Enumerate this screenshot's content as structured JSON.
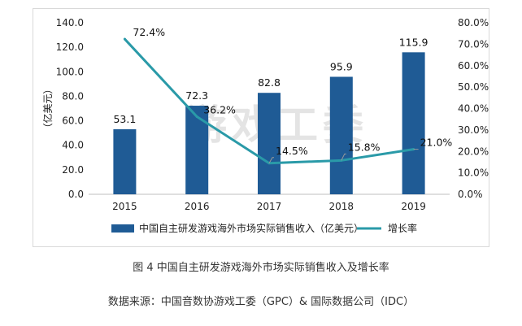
{
  "chart_data": {
    "type": "bar",
    "categories": [
      "2015",
      "2016",
      "2017",
      "2018",
      "2019"
    ],
    "series": [
      {
        "name": "中国自主研发游戏海外市场实际销售收入（亿美元）",
        "type": "bar",
        "axis": "left",
        "values": [
          53.1,
          72.3,
          82.8,
          95.9,
          115.9
        ],
        "labels": [
          "53.1",
          "72.3",
          "82.8",
          "95.9",
          "115.9"
        ],
        "color": "#1f5b95"
      },
      {
        "name": "增长率",
        "type": "line",
        "axis": "right",
        "values": [
          72.4,
          36.2,
          14.5,
          15.8,
          21.0
        ],
        "labels": [
          "72.4%",
          "36.2%",
          "14.5%",
          "15.8%",
          "21.0%"
        ],
        "color": "#2a9aa8"
      }
    ],
    "ylabel": "（亿美元）",
    "ylim": [
      0,
      140
    ],
    "yticks": [
      "0.0",
      "20.0",
      "40.0",
      "60.0",
      "80.0",
      "100.0",
      "120.0",
      "140.0"
    ],
    "y2lim": [
      0,
      80
    ],
    "y2ticks": [
      "0.0%",
      "10.0%",
      "20.0%",
      "30.0%",
      "40.0%",
      "50.0%",
      "60.0%",
      "70.0%",
      "80.0%"
    ],
    "legend": "bottom",
    "grid": false
  },
  "watermark": "游戏工委",
  "caption": "图 4   中国自主研发游戏海外市场实际销售收入及增长率",
  "source": "数据来源：中国音数协游戏工委（GPC）& 国际数据公司（IDC）"
}
